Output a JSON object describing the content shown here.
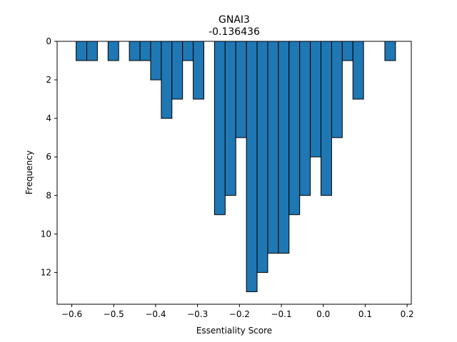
{
  "chart_data": {
    "type": "bar",
    "title": "GNAI3",
    "subtitle": "-0.136436",
    "xlabel": "Essentiality Score",
    "ylabel": "Frequency",
    "xlim": [
      -0.635,
      0.21
    ],
    "ylim": [
      0,
      13.65
    ],
    "y_inverted": true,
    "bin_width": 0.0254,
    "bar_color": "#1f77b4",
    "edge_color": "#000000",
    "x_ticks": [
      -0.6,
      -0.5,
      -0.4,
      -0.3,
      -0.2,
      -0.1,
      0.0,
      0.1,
      0.2
    ],
    "x_tick_labels": [
      "−0.6",
      "−0.5",
      "−0.4",
      "−0.3",
      "−0.2",
      "−0.1",
      "0.0",
      "0.1",
      "0.2"
    ],
    "y_ticks": [
      0,
      2,
      4,
      6,
      8,
      10,
      12
    ],
    "y_tick_labels": [
      "0",
      "2",
      "4",
      "6",
      "8",
      "10",
      "12"
    ],
    "bins": [
      {
        "x0": -0.5897,
        "count": 1
      },
      {
        "x0": -0.5643,
        "count": 1
      },
      {
        "x0": -0.5389,
        "count": 0
      },
      {
        "x0": -0.5135,
        "count": 1
      },
      {
        "x0": -0.4881,
        "count": 0
      },
      {
        "x0": -0.4627,
        "count": 1
      },
      {
        "x0": -0.4373,
        "count": 1
      },
      {
        "x0": -0.4119,
        "count": 2
      },
      {
        "x0": -0.3865,
        "count": 4
      },
      {
        "x0": -0.3611,
        "count": 3
      },
      {
        "x0": -0.3357,
        "count": 1
      },
      {
        "x0": -0.3103,
        "count": 3
      },
      {
        "x0": -0.2849,
        "count": 0
      },
      {
        "x0": -0.2595,
        "count": 9
      },
      {
        "x0": -0.2341,
        "count": 8
      },
      {
        "x0": -0.2087,
        "count": 5
      },
      {
        "x0": -0.1833,
        "count": 13
      },
      {
        "x0": -0.1579,
        "count": 12
      },
      {
        "x0": -0.1325,
        "count": 11
      },
      {
        "x0": -0.1071,
        "count": 11
      },
      {
        "x0": -0.0817,
        "count": 9
      },
      {
        "x0": -0.0563,
        "count": 8
      },
      {
        "x0": -0.0309,
        "count": 6
      },
      {
        "x0": -0.0055,
        "count": 8
      },
      {
        "x0": 0.0199,
        "count": 5
      },
      {
        "x0": 0.0453,
        "count": 1
      },
      {
        "x0": 0.0707,
        "count": 3
      },
      {
        "x0": 0.0961,
        "count": 0
      },
      {
        "x0": 0.1215,
        "count": 0
      },
      {
        "x0": 0.1469,
        "count": 1
      }
    ]
  }
}
